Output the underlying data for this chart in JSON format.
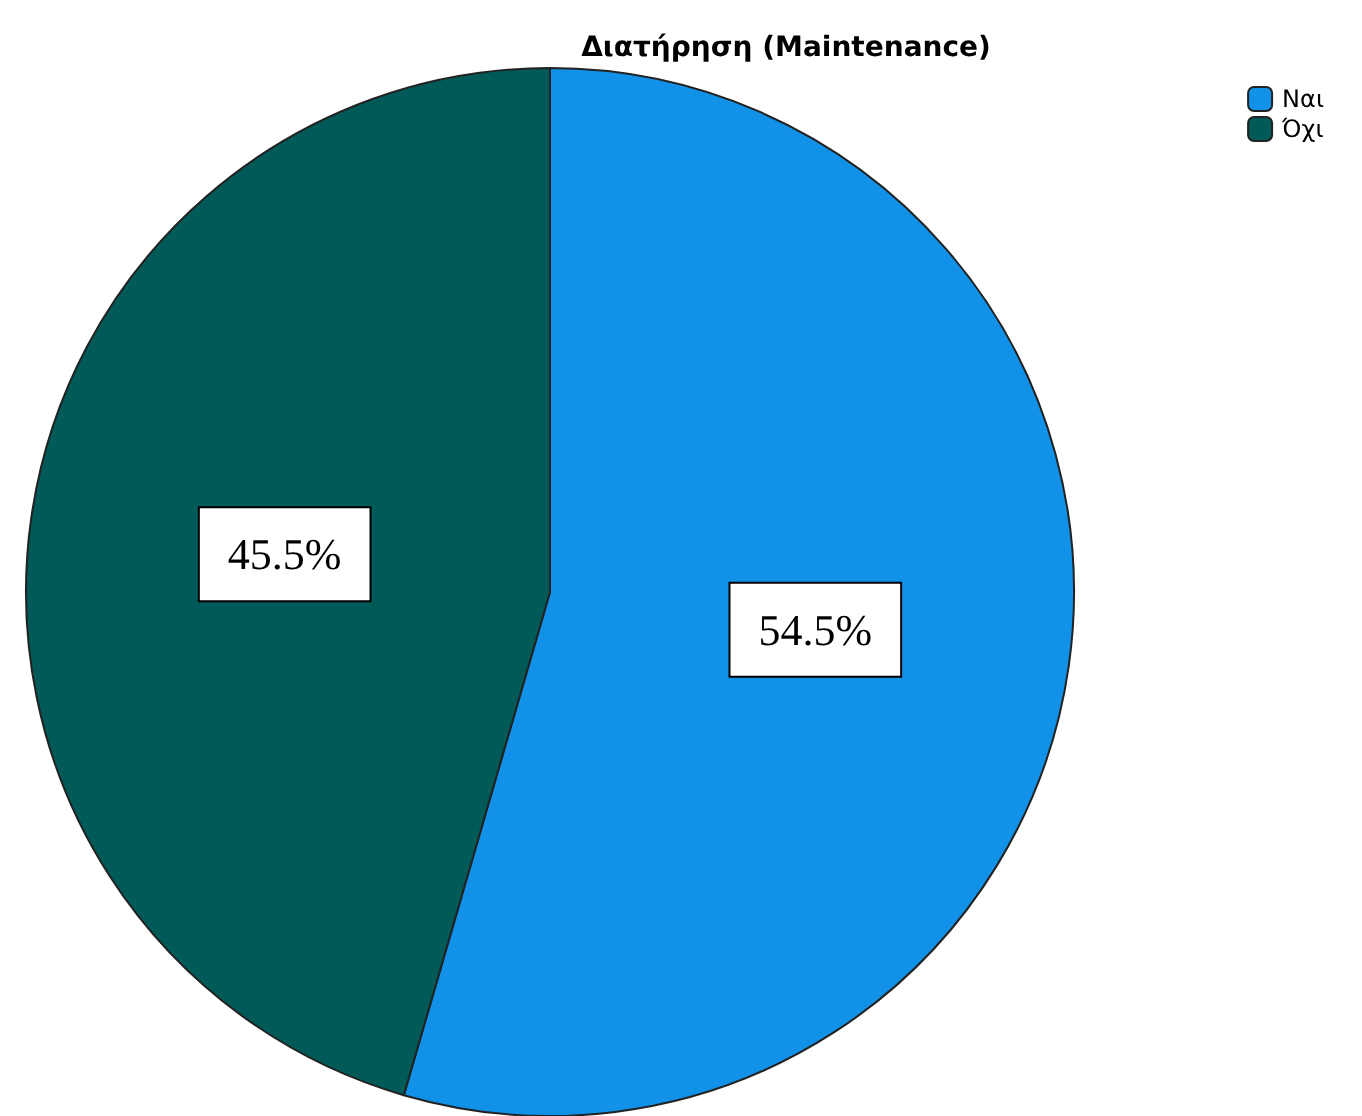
{
  "chart_data": {
    "type": "pie",
    "title": "Διατήρηση (Maintenance)",
    "categories": [
      "Ναι",
      "Όχι"
    ],
    "values": [
      54.5,
      45.5
    ],
    "colors": [
      "#1192e8",
      "#005a58"
    ],
    "value_labels": [
      "54.5%",
      "45.5%"
    ],
    "legend": "top right"
  }
}
